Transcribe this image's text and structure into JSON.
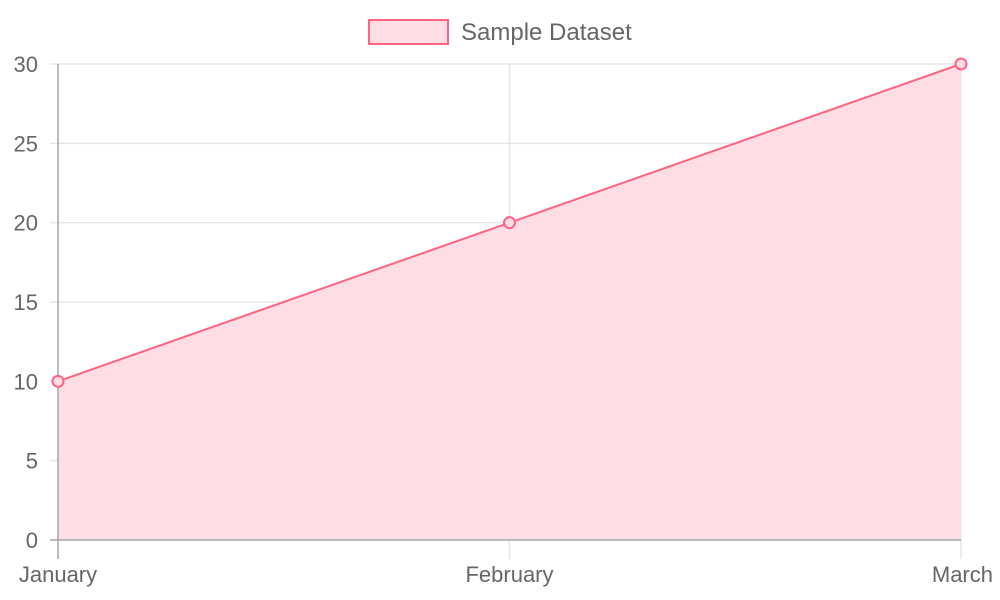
{
  "chart_data": {
    "type": "area",
    "categories": [
      "January",
      "February",
      "March"
    ],
    "series": [
      {
        "name": "Sample Dataset",
        "values": [
          10,
          20,
          30
        ],
        "color": "#ff6384",
        "fill": "#ffdde4"
      }
    ],
    "ylim": [
      0,
      30
    ],
    "yticks": [
      "0",
      "5",
      "10",
      "15",
      "20",
      "25",
      "30"
    ],
    "grid": true,
    "legend_position": "top-center"
  },
  "colors": {
    "grid": "#e5e5e5",
    "axis": "#a6a6a6",
    "text": "#666666"
  }
}
